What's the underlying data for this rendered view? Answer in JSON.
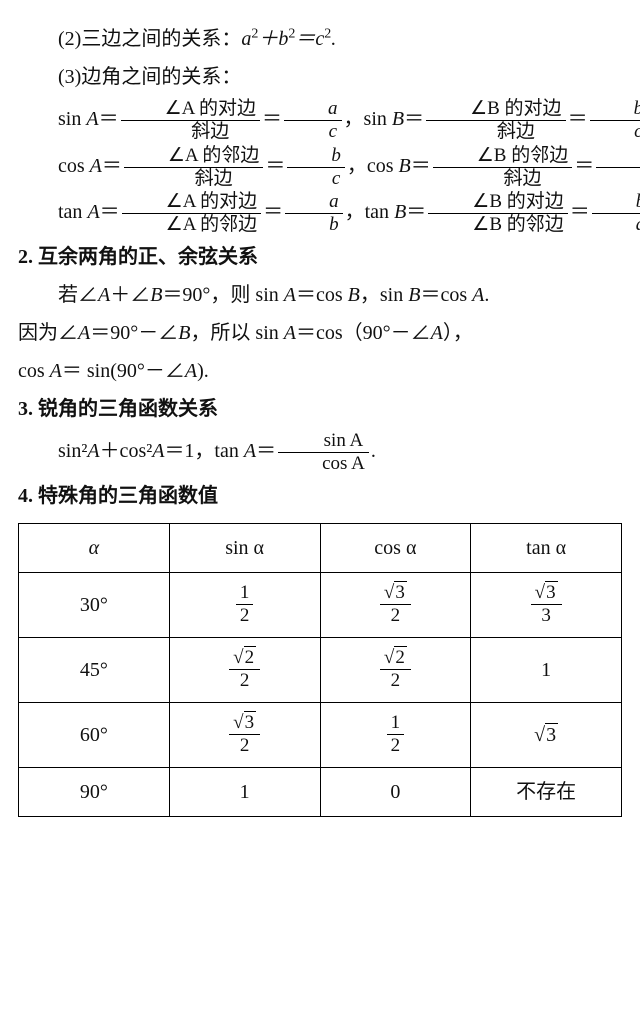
{
  "line_2": "(2)三边之间的关系：",
  "eq_2": "a² + b² = c².",
  "line_3": "(3)边角之间的关系：",
  "sin_label": "sin",
  "cos_label": "cos",
  "tan_label": "tan",
  "A": "A",
  "B": "B",
  "opp_side_A": "∠A 的对边",
  "adj_side_A": "∠A 的邻边",
  "opp_side_B": "∠B 的对边",
  "adj_side_B": "∠B 的邻边",
  "hyp": "斜边",
  "a": "a",
  "b": "b",
  "c": "c",
  "h2": "2. 互余两角的正、余弦关系",
  "para2_l1a": "若∠",
  "para2_l1b": "＋∠",
  "para2_l1c": "＝90°，则 sin ",
  "para2_l1d": "＝cos ",
  "para2_l1e": "，sin ",
  "para2_l1f": "＝cos ",
  "para2_l1g": ".",
  "para2_l2a": "因为∠",
  "para2_l2b": "＝90°－∠",
  "para2_l2c": "，所以 sin ",
  "para2_l2d": "＝cos（90°－∠",
  "para2_l2e": "），",
  "para2_l3a": "cos ",
  "para2_l3b": "＝ sin(90°－∠",
  "para2_l3c": ").",
  "h3": "3. 锐角的三角函数关系",
  "eq3_a": "sin²",
  "eq3_b": "＋cos²",
  "eq3_c": "＝1，tan ",
  "eq3_d": "＝",
  "eq3_num": "sin A",
  "eq3_den": "cos A",
  "h4": "4. 特殊角的三角函数值",
  "table": {
    "headers": [
      "α",
      "sin α",
      "cos α",
      "tan α"
    ],
    "rows": [
      {
        "angle": "30°",
        "sin": {
          "num": "1",
          "den": "2"
        },
        "cos": {
          "rad": "3",
          "den": "2"
        },
        "tan": {
          "rad": "3",
          "den": "3"
        }
      },
      {
        "angle": "45°",
        "sin": {
          "rad": "2",
          "den": "2"
        },
        "cos": {
          "rad": "2",
          "den": "2"
        },
        "tan": "1"
      },
      {
        "angle": "60°",
        "sin": {
          "rad": "3",
          "den": "2"
        },
        "cos": {
          "num": "1",
          "den": "2"
        },
        "tan_rad": "3"
      },
      {
        "angle": "90°",
        "sin_plain": "1",
        "cos_plain": "0",
        "tan_text": "不存在"
      }
    ]
  }
}
